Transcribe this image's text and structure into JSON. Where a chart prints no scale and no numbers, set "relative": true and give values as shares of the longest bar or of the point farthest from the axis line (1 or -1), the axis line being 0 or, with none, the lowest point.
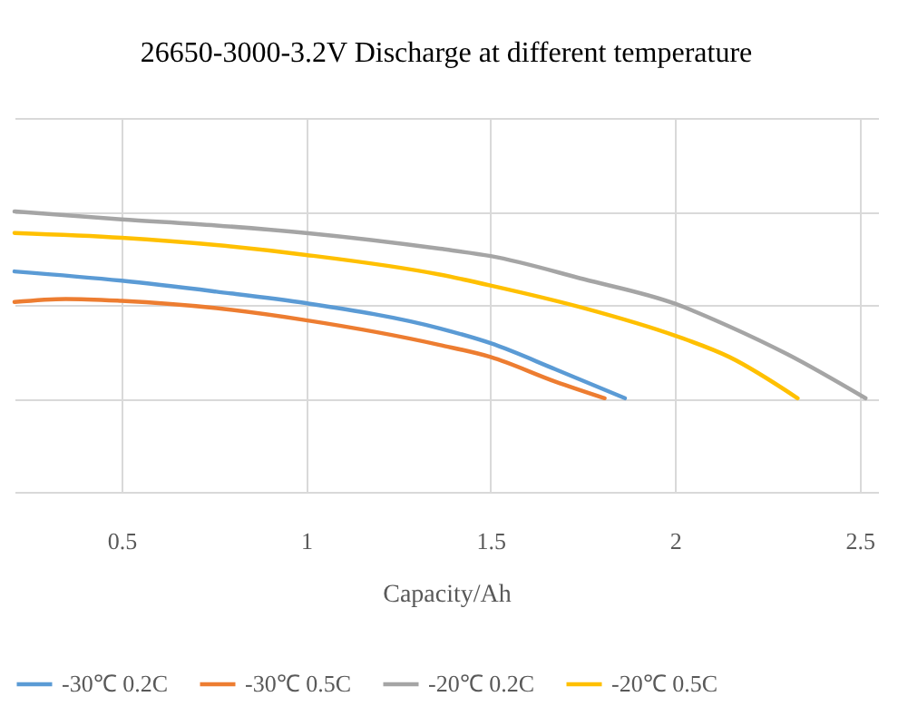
{
  "chart_data": {
    "type": "line",
    "title": "26650-3000-3.2V Discharge at different temperature",
    "xlabel": "Capacity/Ah",
    "relative": true,
    "xlim": [
      0.21,
      2.55
    ],
    "xticks": [
      0.5,
      1,
      1.5,
      2,
      2.5
    ],
    "grid": true,
    "legend": "bottom",
    "line_style": "solid",
    "series": [
      {
        "name": "-30℃ 0.2C",
        "color": "#5b9bd5",
        "x": [
          0.21,
          0.5,
          0.757,
          1.0,
          1.362,
          1.5,
          1.676,
          1.864
        ],
        "values": [
          0.786,
          0.753,
          0.714,
          0.673,
          0.583,
          0.53,
          0.437,
          0.334
        ]
      },
      {
        "name": "-30℃ 0.5C",
        "color": "#ed7d31",
        "x": [
          0.21,
          0.349,
          0.5,
          0.757,
          1.0,
          1.362,
          1.5,
          1.676,
          1.809
        ],
        "values": [
          0.677,
          0.688,
          0.681,
          0.655,
          0.612,
          0.524,
          0.481,
          0.393,
          0.334
        ]
      },
      {
        "name": "-20℃ 0.2C",
        "color": "#a5a5a5",
        "x": [
          0.21,
          0.5,
          0.757,
          1.0,
          1.362,
          1.5,
          1.754,
          2.0,
          2.147,
          2.304,
          2.516
        ],
        "values": [
          1.0,
          0.972,
          0.95,
          0.923,
          0.867,
          0.841,
          0.758,
          0.671,
          0.59,
          0.491,
          0.334
        ]
      },
      {
        "name": "-20℃ 0.5C",
        "color": "#ffc000",
        "x": [
          0.21,
          0.5,
          0.757,
          1.0,
          1.362,
          1.5,
          1.754,
          2.0,
          2.147,
          2.332
        ],
        "values": [
          0.923,
          0.906,
          0.88,
          0.845,
          0.775,
          0.736,
          0.655,
          0.557,
          0.481,
          0.334
        ]
      }
    ]
  }
}
